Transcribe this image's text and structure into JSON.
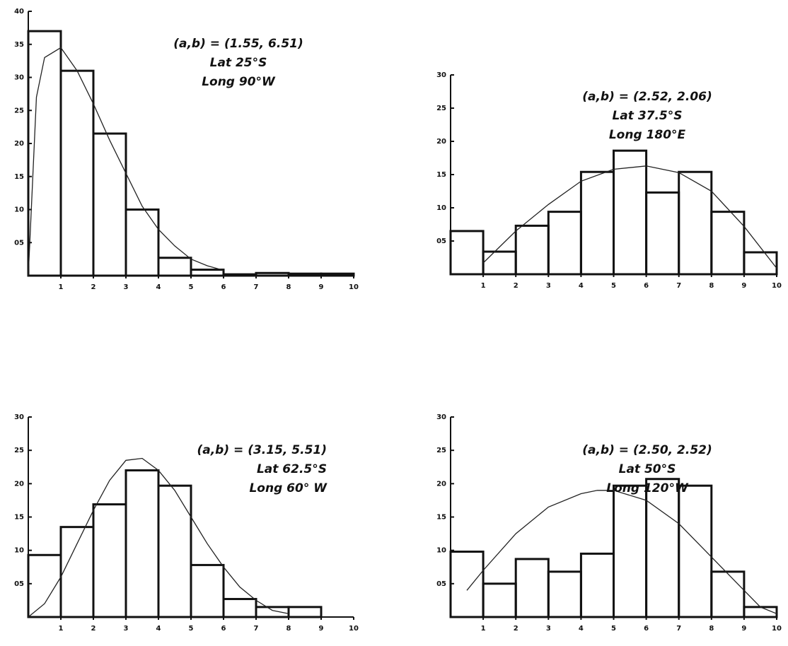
{
  "chart_data": [
    {
      "type": "histogram",
      "bins": [
        0,
        1,
        2,
        3,
        4,
        5,
        6,
        7,
        8,
        9,
        10
      ],
      "counts": [
        37,
        31,
        21.5,
        10,
        2.7,
        0.9,
        0.2,
        0.4,
        0.3,
        0.3
      ],
      "curve": {
        "x": [
          0,
          0.25,
          0.5,
          1,
          1.5,
          2,
          2.5,
          3,
          3.5,
          4,
          4.5,
          5,
          5.5,
          6
        ],
        "values": [
          0,
          27,
          33,
          34.5,
          31,
          26,
          20.5,
          15.5,
          10.5,
          7,
          4.5,
          2.5,
          1.5,
          0.8
        ]
      },
      "annotations": [
        "(a,b) = (1.55, 6.51)",
        "Lat 25°S",
        "Long 90°W"
      ],
      "xlim": [
        0,
        10
      ],
      "ylim": [
        0,
        40
      ],
      "xticks": [
        1,
        2,
        3,
        4,
        5,
        6,
        7,
        8,
        9,
        10
      ],
      "yticks": [
        {
          "value": 5,
          "label": "05"
        },
        10,
        15,
        20,
        25,
        30,
        35,
        40
      ]
    },
    {
      "type": "histogram",
      "bins": [
        0,
        1,
        2,
        3,
        4,
        5,
        6,
        7,
        8,
        9,
        10
      ],
      "counts": [
        6.5,
        3.4,
        7.3,
        9.4,
        15.4,
        18.6,
        12.3,
        15.4,
        9.4,
        3.3
      ],
      "curve": {
        "x": [
          1,
          2,
          3,
          4,
          5,
          6,
          7,
          8,
          9,
          10
        ],
        "values": [
          1.7,
          6.5,
          10.5,
          14,
          15.8,
          16.3,
          15.3,
          12.5,
          7.2,
          0.9
        ]
      },
      "annotations": [
        "(a,b) = (2.52, 2.06)",
        "Lat 37.5°S",
        "Long 180°E"
      ],
      "xlim": [
        0,
        10
      ],
      "ylim": [
        0,
        30
      ],
      "xticks": [
        1,
        2,
        3,
        4,
        5,
        6,
        7,
        8,
        9,
        10
      ],
      "yticks": [
        {
          "value": 5,
          "label": "05"
        },
        10,
        15,
        20,
        25,
        30
      ]
    },
    {
      "type": "histogram",
      "bins": [
        0,
        1,
        2,
        3,
        4,
        5,
        6,
        7,
        8,
        9,
        10
      ],
      "counts": [
        9.3,
        13.5,
        16.9,
        22,
        19.7,
        7.8,
        2.7,
        1.5,
        1.5,
        0
      ],
      "curve": {
        "x": [
          0,
          0.5,
          1,
          1.5,
          2,
          2.5,
          3,
          3.5,
          4,
          4.5,
          5,
          5.5,
          6,
          6.5,
          7,
          7.5,
          8
        ],
        "values": [
          0,
          2,
          6,
          11,
          16,
          20.5,
          23.5,
          23.8,
          22,
          19,
          15,
          11,
          7.5,
          4.5,
          2.5,
          1,
          0.5
        ]
      },
      "annotations": [
        "(a,b) = (3.15, 5.51)",
        "Lat 62.5°S",
        "Long 60° W"
      ],
      "xlim": [
        0,
        10
      ],
      "ylim": [
        0,
        30
      ],
      "xticks": [
        1,
        2,
        3,
        4,
        5,
        6,
        7,
        8,
        9,
        10
      ],
      "yticks": [
        {
          "value": 5,
          "label": "05"
        },
        10,
        15,
        20,
        25,
        30
      ]
    },
    {
      "type": "histogram",
      "bins": [
        0,
        1,
        2,
        3,
        4,
        5,
        6,
        7,
        8,
        9,
        10
      ],
      "counts": [
        9.8,
        5,
        8.7,
        6.8,
        9.5,
        19.7,
        20.7,
        19.7,
        6.8,
        1.5
      ],
      "curve": {
        "x": [
          0.5,
          1,
          2,
          3,
          4,
          4.5,
          5,
          6,
          7,
          8,
          9,
          9.5,
          10
        ],
        "values": [
          4,
          7,
          12.5,
          16.5,
          18.5,
          19,
          19,
          17.5,
          14,
          9,
          4,
          1.5,
          0.5
        ]
      },
      "annotations": [
        "(a,b) = (2.50, 2.52)",
        "Lat 50°S",
        "Long 120°W"
      ],
      "xlim": [
        0,
        10
      ],
      "ylim": [
        0,
        30
      ],
      "xticks": [
        1,
        2,
        3,
        4,
        5,
        6,
        7,
        8,
        9,
        10
      ],
      "yticks": [
        {
          "value": 5,
          "label": "05"
        },
        10,
        15,
        20,
        25,
        30
      ]
    }
  ]
}
